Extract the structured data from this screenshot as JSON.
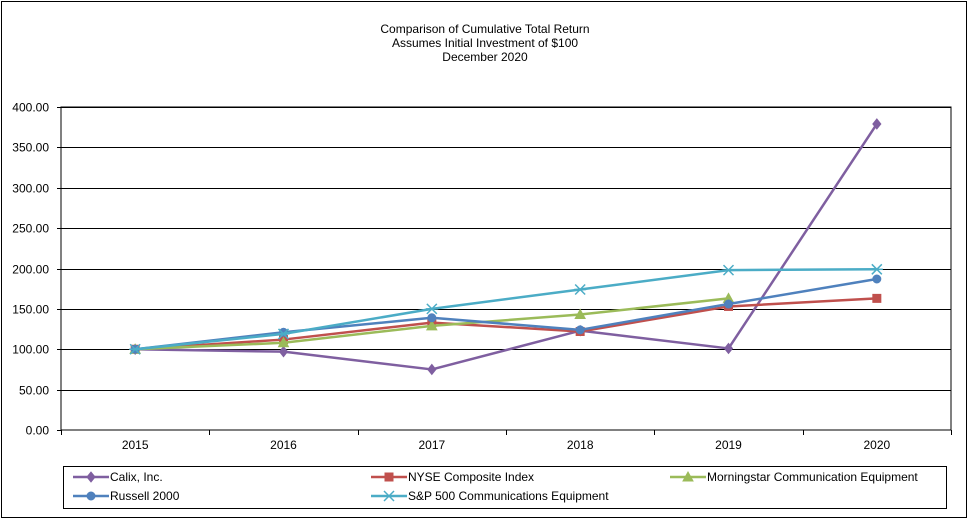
{
  "chart_data": {
    "type": "line",
    "title": "Comparison of Cumulative Total Return",
    "subtitle_lines": [
      "Assumes Initial Investment of $100",
      "December 2020"
    ],
    "categories": [
      "2015",
      "2016",
      "2017",
      "2018",
      "2019",
      "2020"
    ],
    "ylim": [
      0,
      400
    ],
    "yticks": [
      "0.00",
      "50.00",
      "100.00",
      "150.00",
      "200.00",
      "250.00",
      "300.00",
      "350.00",
      "400.00"
    ],
    "grid": true,
    "legend_position": "bottom",
    "series": [
      {
        "name": "Calix, Inc.",
        "color": "#7F5FA0",
        "marker": "diamond",
        "values": [
          100,
          97,
          75,
          123,
          101,
          379
        ]
      },
      {
        "name": "NYSE Composite Index",
        "color": "#C0504D",
        "marker": "square",
        "values": [
          100,
          112,
          133,
          122,
          153,
          163
        ]
      },
      {
        "name": "Morningstar Communication Equipment",
        "color": "#9BBB59",
        "marker": "triangle",
        "values": [
          100,
          108,
          129,
          143,
          163,
          null
        ]
      },
      {
        "name": "Russell 2000",
        "color": "#4F81BD",
        "marker": "circle",
        "values": [
          100,
          121,
          139,
          124,
          156,
          187
        ]
      },
      {
        "name": "S&P 500 Communications Equipment",
        "color": "#4BACC6",
        "marker": "asterisk",
        "values": [
          100,
          119,
          150,
          174,
          198,
          199
        ]
      }
    ]
  }
}
